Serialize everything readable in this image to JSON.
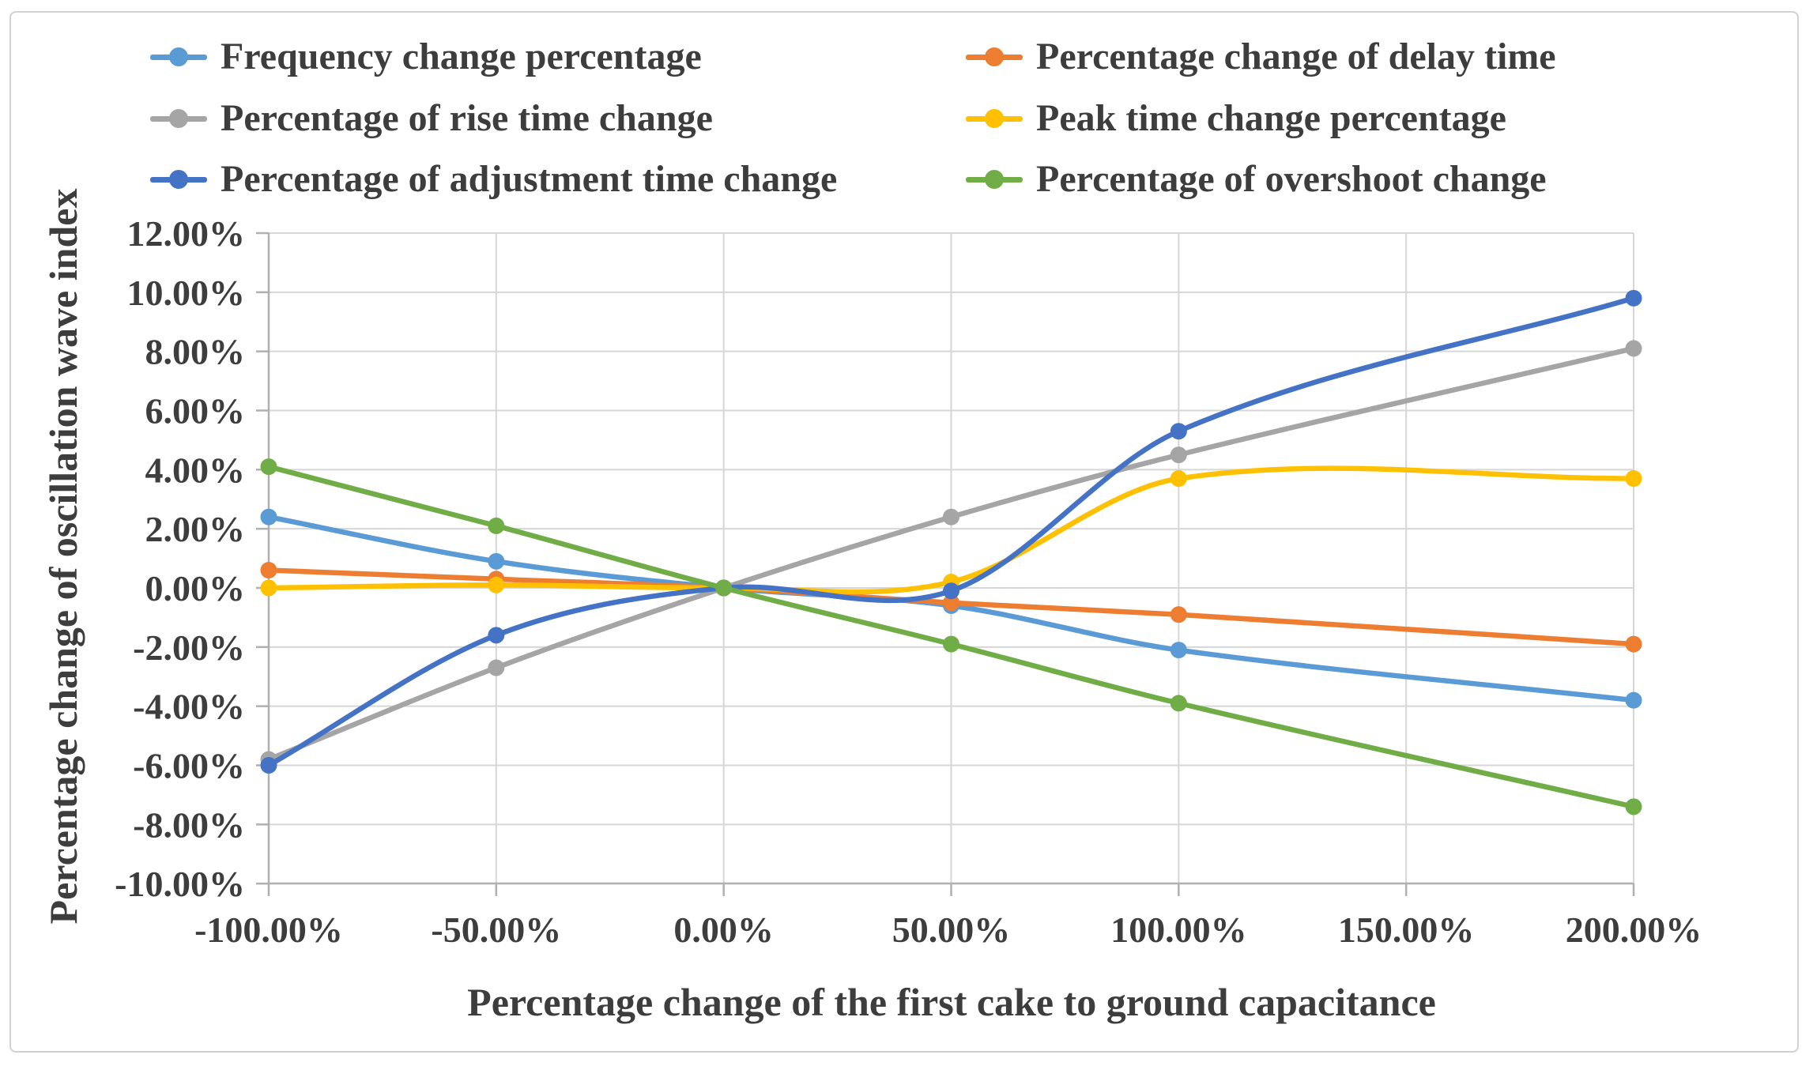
{
  "chart_data": {
    "type": "line",
    "title": "",
    "xlabel": "Percentage change of the first cake to ground capacitance",
    "ylabel": "Percentage change of oscillation wave index",
    "x": [
      -100,
      -50,
      0,
      50,
      100,
      200
    ],
    "xlim": [
      -100,
      200
    ],
    "ylim": [
      -10,
      12
    ],
    "grid": true,
    "legend_position": "top-two-columns",
    "x_ticks": [
      {
        "value": -100,
        "label": "-100.00%"
      },
      {
        "value": -50,
        "label": "-50.00%"
      },
      {
        "value": 0,
        "label": "0.00%"
      },
      {
        "value": 50,
        "label": "50.00%"
      },
      {
        "value": 100,
        "label": "100.00%"
      },
      {
        "value": 150,
        "label": "150.00%"
      },
      {
        "value": 200,
        "label": "200.00%"
      }
    ],
    "y_ticks": [
      {
        "value": 12,
        "label": "12.00%"
      },
      {
        "value": 10,
        "label": "10.00%"
      },
      {
        "value": 8,
        "label": "8.00%"
      },
      {
        "value": 6,
        "label": "6.00%"
      },
      {
        "value": 4,
        "label": "4.00%"
      },
      {
        "value": 2,
        "label": "2.00%"
      },
      {
        "value": 0,
        "label": "0.00%"
      },
      {
        "value": -2,
        "label": "-2.00%"
      },
      {
        "value": -4,
        "label": "-4.00%"
      },
      {
        "value": -6,
        "label": "-6.00%"
      },
      {
        "value": -8,
        "label": "-8.00%"
      },
      {
        "value": -10,
        "label": "-10.00%"
      }
    ],
    "series": [
      {
        "name": "Frequency change percentage",
        "color": "#5B9BD5",
        "values": [
          2.4,
          0.9,
          0,
          -0.6,
          -2.1,
          -3.8
        ]
      },
      {
        "name": "Percentage change of delay time",
        "color": "#ED7D31",
        "values": [
          0.6,
          0.3,
          0,
          -0.5,
          -0.9,
          -1.9
        ]
      },
      {
        "name": "Percentage of rise time change",
        "color": "#A5A5A5",
        "values": [
          -5.8,
          -2.7,
          0,
          2.4,
          4.5,
          8.1
        ]
      },
      {
        "name": "Peak time change percentage",
        "color": "#FFC000",
        "values": [
          0.0,
          0.1,
          0,
          0.2,
          3.7,
          3.7
        ]
      },
      {
        "name": "Percentage of adjustment time change",
        "color": "#4472C4",
        "values": [
          -6.0,
          -1.6,
          0,
          -0.1,
          5.3,
          9.8
        ]
      },
      {
        "name": "Percentage of overshoot change",
        "color": "#70AD47",
        "values": [
          4.1,
          2.1,
          0,
          -1.9,
          -3.9,
          -7.4
        ]
      }
    ],
    "style": {
      "grid_color": "#d6d6d6",
      "axis_color": "#b0b0b0",
      "text_color": "#3d3d3d",
      "line_width": 6.5,
      "marker_radius": 10.5
    }
  }
}
